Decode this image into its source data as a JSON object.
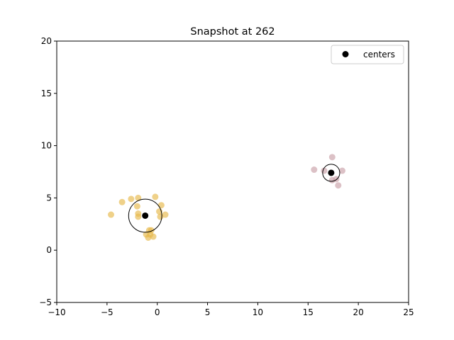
{
  "chart_data": {
    "type": "scatter",
    "title": "Snapshot at 262",
    "xlabel": "",
    "ylabel": "",
    "xlim": [
      -10,
      25
    ],
    "ylim": [
      -5,
      20
    ],
    "xticks": [
      -10,
      -5,
      0,
      5,
      10,
      15,
      20,
      25
    ],
    "yticks": [
      -5,
      0,
      5,
      10,
      15,
      20
    ],
    "xtick_labels": [
      "−10",
      "−5",
      "0",
      "5",
      "10",
      "15",
      "20",
      "25"
    ],
    "ytick_labels": [
      "−5",
      "0",
      "5",
      "10",
      "15",
      "20"
    ],
    "grid": false,
    "legend": {
      "location": "upper right",
      "entries": [
        "centers"
      ]
    },
    "clusters": [
      {
        "color": "#e6b84a",
        "alpha": 0.65,
        "center": [
          -1.2,
          3.3
        ],
        "radius": 1.65,
        "points": [
          [
            -4.6,
            3.4
          ],
          [
            -3.5,
            4.6
          ],
          [
            -2.6,
            4.9
          ],
          [
            -1.9,
            5.0
          ],
          [
            -2.0,
            4.2
          ],
          [
            -1.9,
            3.5
          ],
          [
            -1.9,
            3.2
          ],
          [
            -0.2,
            5.1
          ],
          [
            0.4,
            4.3
          ],
          [
            0.2,
            3.7
          ],
          [
            0.8,
            3.4
          ],
          [
            0.3,
            3.2
          ],
          [
            -0.8,
            1.9
          ],
          [
            -1.1,
            1.5
          ],
          [
            -0.7,
            1.5
          ],
          [
            -0.9,
            1.2
          ],
          [
            -0.4,
            1.3
          ],
          [
            -0.6,
            1.9
          ]
        ]
      },
      {
        "color": "#c9a0a8",
        "alpha": 0.65,
        "center": [
          17.3,
          7.4
        ],
        "radius": 0.85,
        "points": [
          [
            15.6,
            7.7
          ],
          [
            16.6,
            7.6
          ],
          [
            17.4,
            8.9
          ],
          [
            18.4,
            7.6
          ],
          [
            17.4,
            6.7
          ],
          [
            17.8,
            6.8
          ],
          [
            18.0,
            6.2
          ]
        ]
      }
    ],
    "centers_series": {
      "name": "centers",
      "color": "#000000",
      "points": [
        [
          -1.2,
          3.3
        ],
        [
          17.3,
          7.4
        ]
      ]
    }
  }
}
